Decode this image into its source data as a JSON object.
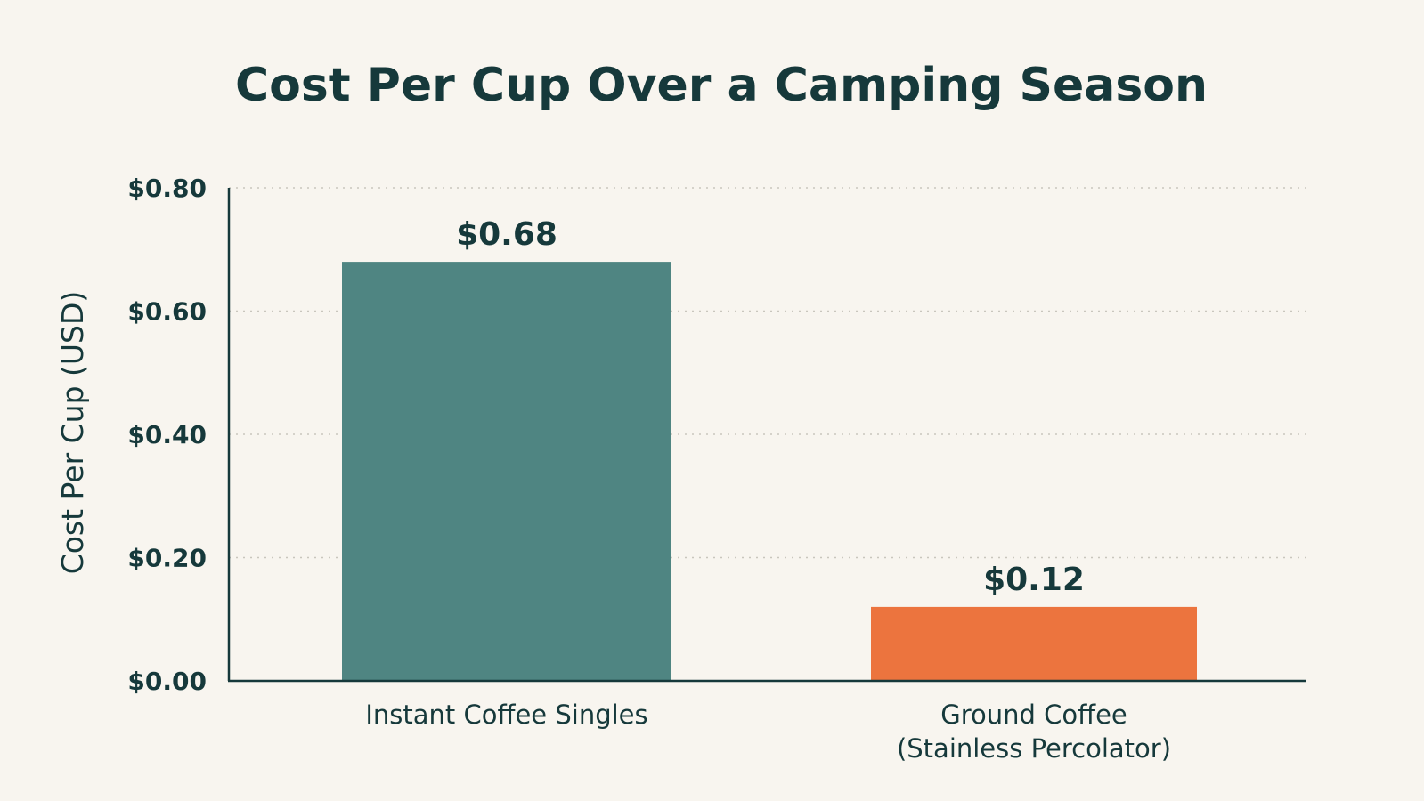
{
  "chart_data": {
    "type": "bar",
    "title": "Cost Per Cup Over a Camping Season",
    "xlabel": "",
    "ylabel": "Cost Per Cup (USD)",
    "ylim": [
      0,
      0.8
    ],
    "y_ticks": [
      "$0.00",
      "$0.20",
      "$0.40",
      "$0.60",
      "$0.80"
    ],
    "y_tick_values": [
      0,
      0.2,
      0.4,
      0.6,
      0.8
    ],
    "grid": "horizontal dotted",
    "legend": "none",
    "categories": [
      [
        "Instant Coffee Singles"
      ],
      [
        "Ground Coffee",
        "(Stainless Percolator)"
      ]
    ],
    "values": [
      0.68,
      0.12
    ],
    "data_labels": [
      "$0.68",
      "$0.12"
    ],
    "colors": [
      "#4f8582",
      "#ec743e"
    ]
  },
  "colors": {
    "background": "#f8f5ef",
    "text": "#16393b",
    "axis": "#16393b",
    "grid": "#c9c6bd"
  }
}
